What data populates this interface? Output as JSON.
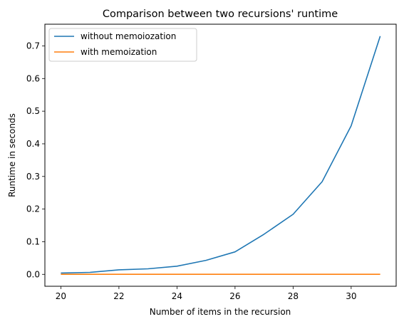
{
  "chart_data": {
    "type": "line",
    "title": "Comparison between two recursions' runtime",
    "xlabel": "Number of items in the recursion",
    "ylabel": "Runtime in seconds",
    "x": [
      20,
      21,
      22,
      23,
      24,
      25,
      26,
      27,
      28,
      29,
      30,
      31
    ],
    "series": [
      {
        "name": "without memoiozation",
        "color": "#1f77b4",
        "values": [
          0.004,
          0.006,
          0.014,
          0.017,
          0.025,
          0.043,
          0.069,
          0.123,
          0.184,
          0.284,
          0.455,
          0.73
        ]
      },
      {
        "name": "with memoization",
        "color": "#ff7f0e",
        "values": [
          0.0001,
          0.0001,
          0.0001,
          0.0001,
          0.0001,
          0.0001,
          0.0001,
          0.0001,
          0.0001,
          0.0001,
          0.0001,
          0.0001
        ]
      }
    ],
    "xlim": [
      19.45,
      31.55
    ],
    "ylim": [
      -0.0365,
      0.7665
    ],
    "xticks": [
      20,
      22,
      24,
      26,
      28,
      30
    ],
    "yticks": [
      0.0,
      0.1,
      0.2,
      0.3,
      0.4,
      0.5,
      0.6,
      0.7
    ],
    "ytick_labels": [
      "0.0",
      "0.1",
      "0.2",
      "0.3",
      "0.4",
      "0.5",
      "0.6",
      "0.7"
    ],
    "grid": false,
    "legend": "upper-left"
  }
}
